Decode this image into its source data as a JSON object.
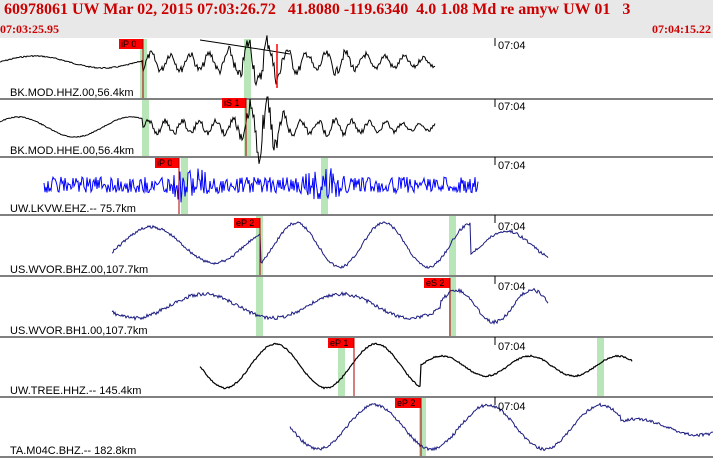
{
  "header": {
    "title": "60978061 UW Mar 02, 2015 07:03:26.72   41.8080 -119.6340  4.0 1.08 Md re amyw UW 01   3",
    "time_left": "07:03:25.95",
    "time_right": "07:04:15.22"
  },
  "colors": {
    "header_text": "#cc0000",
    "header_bg": "#e8e8e8",
    "pick_flag": "#ff0000",
    "pick_window": "#b8e6b8",
    "trace_black": "#000000",
    "trace_blue": "#0000ff",
    "trace_navy": "#1a1a80"
  },
  "traces": [
    {
      "label": "BK.MOD.HHZ.00,56.4km",
      "time_tick": "07:04",
      "pick": "iP 0",
      "color": "#000000"
    },
    {
      "label": "BK.MOD.HHE.00,56.4km",
      "time_tick": "07:04",
      "pick": "iS 1",
      "color": "#000000"
    },
    {
      "label": "UW.LKVW.EHZ.-- 75.7km",
      "time_tick": "07:04",
      "pick": "iP 0",
      "color": "#0000ff"
    },
    {
      "label": "US.WVOR.BHZ.00,107.7km",
      "time_tick": "07:04",
      "pick": "eP 2",
      "color": "#1a1a80"
    },
    {
      "label": "US.WVOR.BH1.00,107.7km",
      "time_tick": "07:04",
      "pick": "eS 2",
      "color": "#1a1a80"
    },
    {
      "label": "UW.TREE.HHZ.-- 145.4km",
      "time_tick": "07:04",
      "pick": "eP 1",
      "color": "#000000"
    },
    {
      "label": "TA.M04C.BHZ.-- 182.8km",
      "time_tick": "07:04",
      "pick": "eP 2",
      "color": "#1a1a80"
    }
  ]
}
